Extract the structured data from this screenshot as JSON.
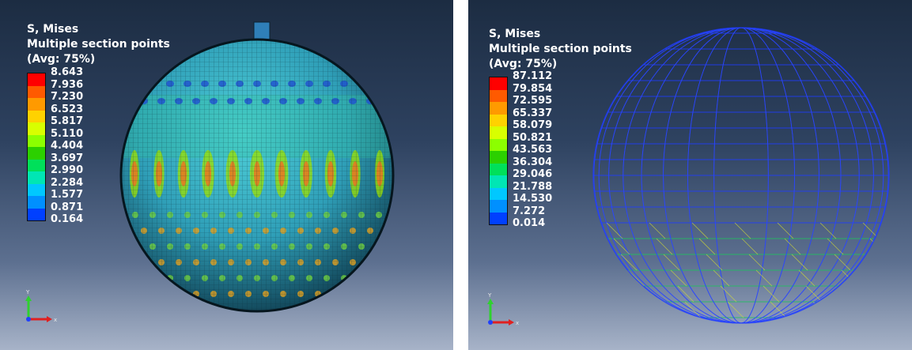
{
  "left_view": {
    "title_line1": "S, Mises",
    "title_line2": "Multiple section points",
    "title_line3": "(Avg: 75%)",
    "legend_values": [
      "8.643",
      "7.936",
      "7.230",
      "6.523",
      "5.817",
      "5.110",
      "4.404",
      "3.697",
      "2.990",
      "2.284",
      "1.577",
      "0.871",
      "0.164"
    ],
    "triad": {
      "y": "Y",
      "x": "x"
    }
  },
  "right_view": {
    "title_line1": "S, Mises",
    "title_line2": "Multiple section points",
    "title_line3": "(Avg: 75%)",
    "legend_values": [
      "87.112",
      "79.854",
      "72.595",
      "65.337",
      "58.079",
      "50.821",
      "43.563",
      "36.304",
      "29.046",
      "21.788",
      "14.530",
      "7.272",
      "0.014"
    ],
    "triad": {
      "y": "Y",
      "x": "x"
    }
  },
  "colors": {
    "legend_scale": [
      "#ff0000",
      "#ff5a00",
      "#ff9a00",
      "#ffd200",
      "#d8ff00",
      "#8cff00",
      "#2cd000",
      "#00e05a",
      "#00e6b4",
      "#00c8ff",
      "#0090ff",
      "#0040ff",
      "#0000e0"
    ],
    "sphere_base": "#3aa6c4",
    "wire": "#1f3cff"
  }
}
